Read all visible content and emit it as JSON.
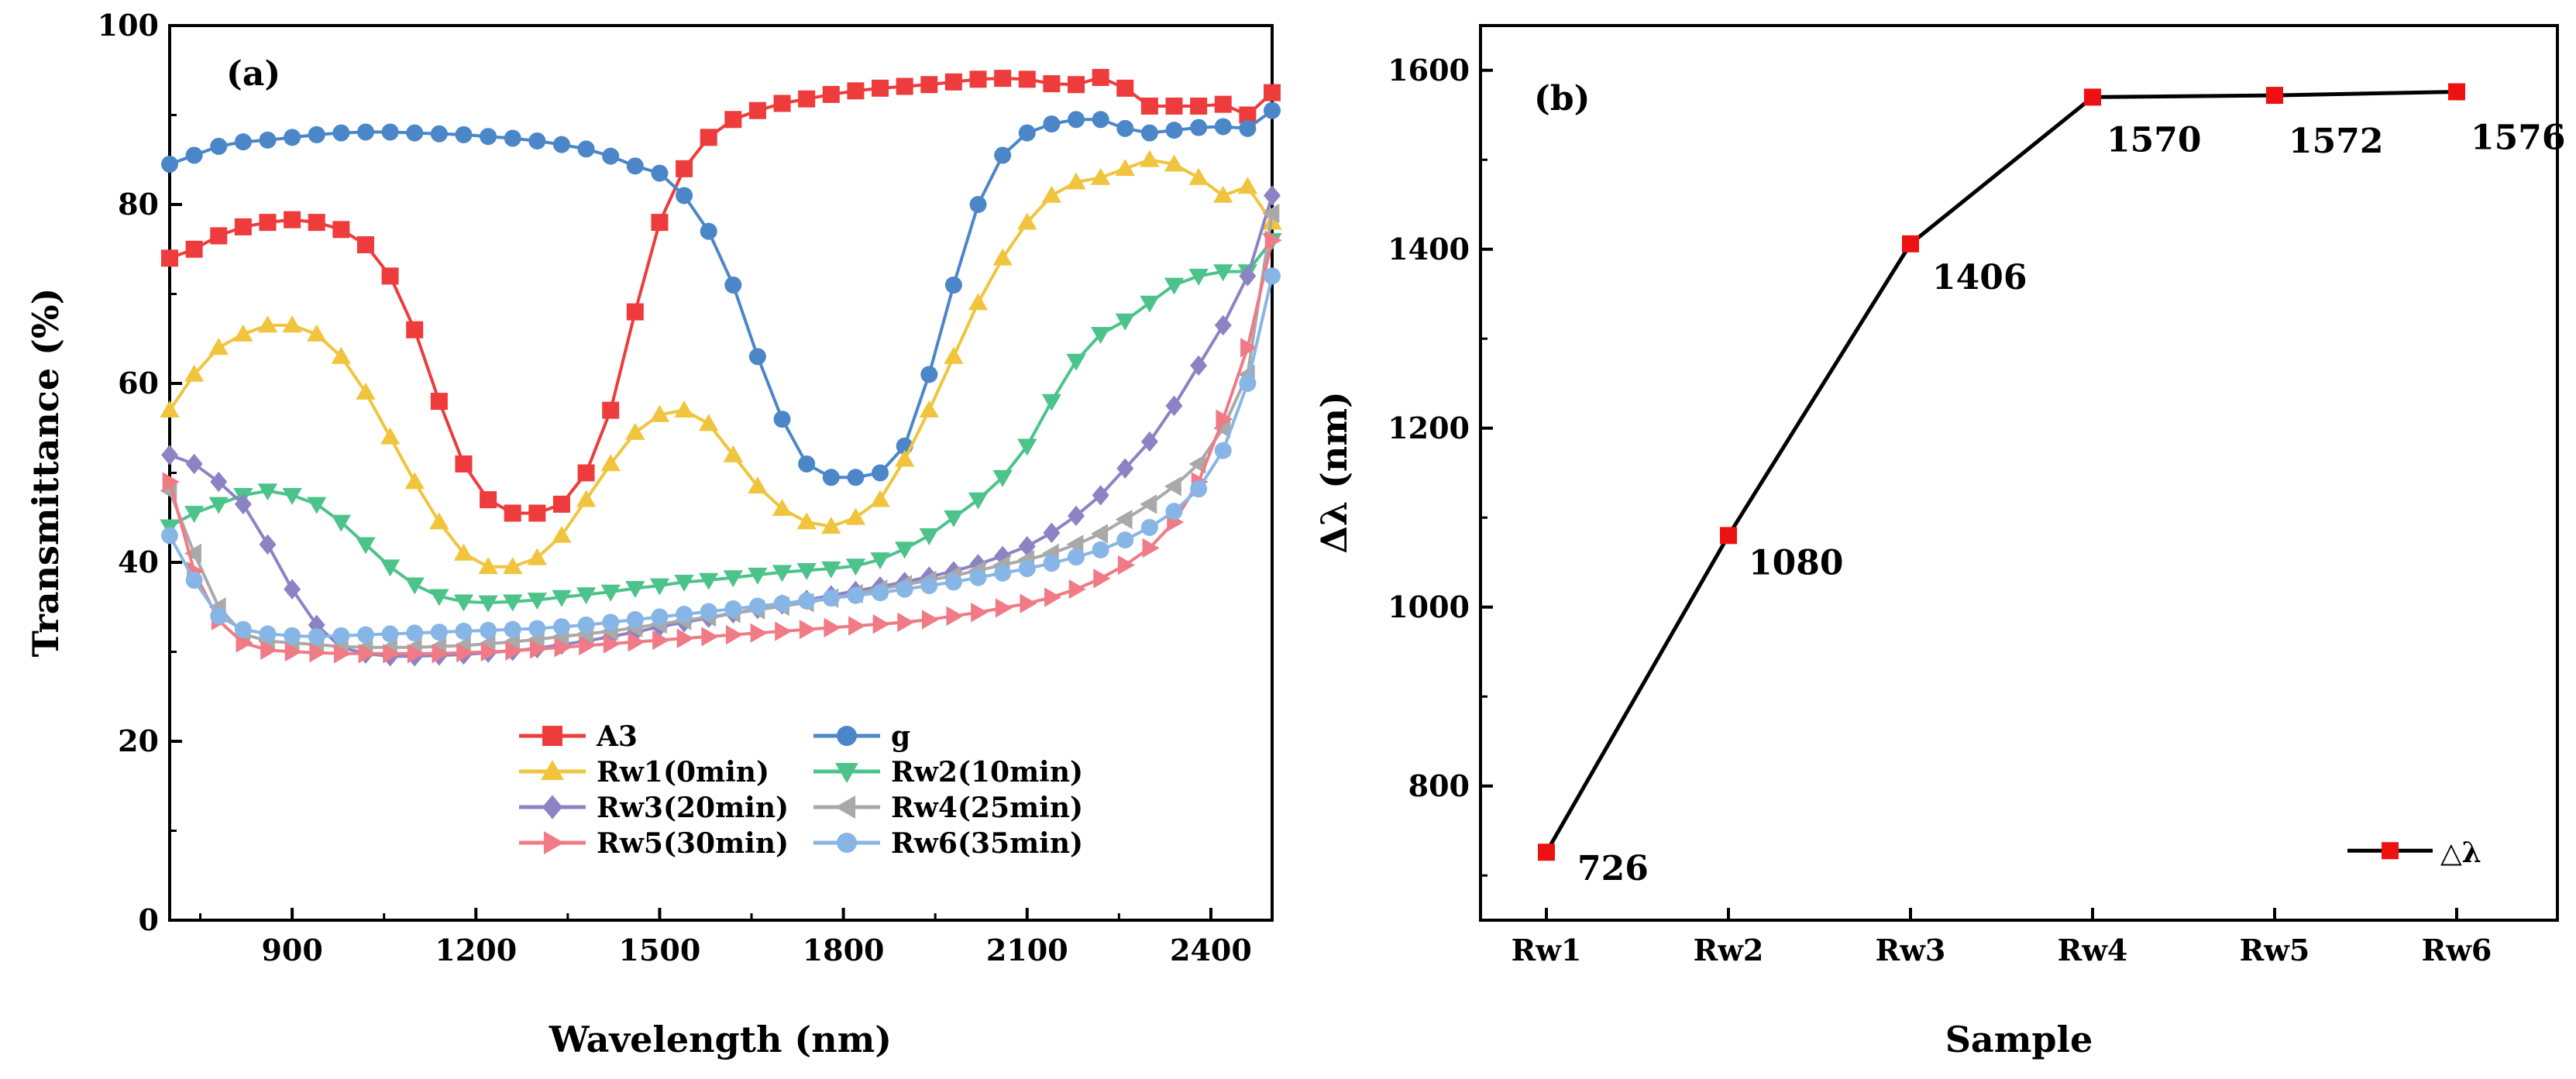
{
  "chart_data": [
    {
      "type": "line",
      "panel_label": "(a)",
      "xlabel": "Wavelength (nm)",
      "ylabel": "Transmittance (%)",
      "xlim": [
        700,
        2500
      ],
      "ylim": [
        0,
        100
      ],
      "x_ticks": [
        900,
        1200,
        1500,
        1800,
        2100,
        2400
      ],
      "y_ticks": [
        0,
        20,
        40,
        60,
        80,
        100
      ],
      "legend_position": "bottom-center",
      "legend_columns": 2,
      "x": [
        700,
        740,
        780,
        820,
        860,
        900,
        940,
        980,
        1020,
        1060,
        1100,
        1140,
        1180,
        1220,
        1260,
        1300,
        1340,
        1380,
        1420,
        1460,
        1500,
        1540,
        1580,
        1620,
        1660,
        1700,
        1740,
        1780,
        1820,
        1860,
        1900,
        1940,
        1980,
        2020,
        2060,
        2100,
        2140,
        2180,
        2220,
        2260,
        2300,
        2340,
        2380,
        2420,
        2460,
        2500
      ],
      "series": [
        {
          "name": "A3",
          "color": "#ee3b3b",
          "marker": "square",
          "values": [
            74,
            75,
            76.5,
            77.5,
            78,
            78.3,
            78,
            77.2,
            75.5,
            72,
            66,
            58,
            51,
            47,
            45.5,
            45.5,
            46.5,
            50,
            57,
            68,
            78,
            84,
            87.5,
            89.5,
            90.5,
            91.3,
            91.8,
            92.3,
            92.7,
            93,
            93.2,
            93.4,
            93.7,
            94,
            94.1,
            94,
            93.5,
            93.4,
            94.2,
            93,
            91,
            91,
            91,
            91.2,
            90,
            92.5
          ]
        },
        {
          "name": "g",
          "color": "#4a86c8",
          "marker": "circle",
          "values": [
            84.5,
            85.5,
            86.5,
            87,
            87.2,
            87.5,
            87.8,
            88,
            88.1,
            88.1,
            88,
            87.9,
            87.8,
            87.6,
            87.4,
            87.1,
            86.7,
            86.2,
            85.4,
            84.3,
            83.5,
            81,
            77,
            71,
            63,
            56,
            51,
            49.5,
            49.5,
            50,
            53,
            61,
            71,
            80,
            85.5,
            88,
            89,
            89.5,
            89.5,
            88.5,
            88,
            88.3,
            88.6,
            88.7,
            88.5,
            90.5
          ]
        },
        {
          "name": "Rw1(0min)",
          "color": "#f0c43c",
          "marker": "triangle-up",
          "values": [
            57,
            61,
            64,
            65.5,
            66.5,
            66.5,
            65.5,
            63,
            59,
            54,
            49,
            44.5,
            41,
            39.5,
            39.5,
            40.5,
            43,
            47,
            51,
            54.5,
            56.5,
            57,
            55.5,
            52,
            48.5,
            46,
            44.5,
            44,
            45,
            47,
            51.5,
            57,
            63,
            69,
            74,
            78,
            81,
            82.5,
            83,
            84,
            85,
            84.5,
            83,
            81,
            82,
            78
          ]
        },
        {
          "name": "Rw2(10min)",
          "color": "#4cc38a",
          "marker": "triangle-down",
          "values": [
            44,
            45.5,
            46.5,
            47.5,
            48,
            47.5,
            46.5,
            44.5,
            42,
            39.5,
            37.5,
            36.2,
            35.6,
            35.5,
            35.6,
            35.8,
            36.1,
            36.4,
            36.7,
            37.1,
            37.4,
            37.8,
            38,
            38.3,
            38.6,
            38.9,
            39.1,
            39.3,
            39.6,
            40.3,
            41.5,
            43,
            45,
            47,
            49.5,
            53,
            58,
            62.5,
            65.5,
            67,
            69,
            71,
            72,
            72.5,
            72.5,
            76
          ]
        },
        {
          "name": "Rw3(20min)",
          "color": "#8b83c4",
          "marker": "diamond",
          "values": [
            52,
            51,
            49,
            46.5,
            42,
            37,
            33,
            30.5,
            29.8,
            29.5,
            29.5,
            29.6,
            29.7,
            29.9,
            30.1,
            30.4,
            30.8,
            31.2,
            31.7,
            32.2,
            32.8,
            33.3,
            33.8,
            34.3,
            34.8,
            35.3,
            35.8,
            36.3,
            36.8,
            37.3,
            37.8,
            38.4,
            39,
            39.8,
            40.7,
            41.8,
            43.3,
            45.2,
            47.5,
            50.5,
            53.5,
            57.5,
            62,
            66.5,
            72,
            81
          ]
        },
        {
          "name": "Rw4(25min)",
          "color": "#a9a9a9",
          "marker": "triangle-left",
          "values": [
            48,
            41,
            35,
            32,
            31.2,
            31,
            30.8,
            30.6,
            30.5,
            30.5,
            30.5,
            30.6,
            30.7,
            30.9,
            31.1,
            31.4,
            31.7,
            32,
            32.3,
            32.7,
            33.1,
            33.5,
            33.9,
            34.3,
            34.7,
            35.1,
            35.5,
            36,
            36.5,
            37,
            37.5,
            38,
            38.5,
            39.1,
            39.7,
            40.3,
            41,
            42,
            43.2,
            44.8,
            46.5,
            48.5,
            51,
            55,
            61,
            79
          ]
        },
        {
          "name": "Rw5(30min)",
          "color": "#f07a86",
          "marker": "triangle-right",
          "values": [
            49,
            39,
            33.5,
            31,
            30.2,
            30,
            29.9,
            29.8,
            29.8,
            29.8,
            29.8,
            29.8,
            29.9,
            30,
            30.1,
            30.3,
            30.5,
            30.7,
            30.9,
            31.1,
            31.3,
            31.5,
            31.7,
            31.9,
            32.1,
            32.3,
            32.5,
            32.7,
            32.9,
            33.1,
            33.3,
            33.6,
            34,
            34.4,
            34.9,
            35.4,
            36.1,
            37,
            38.2,
            39.7,
            41.6,
            44.5,
            49,
            56,
            64,
            76
          ]
        },
        {
          "name": "Rw6(35min)",
          "color": "#87b6e6",
          "marker": "circle",
          "values": [
            43,
            38,
            34,
            32.5,
            32,
            31.8,
            31.7,
            31.8,
            31.9,
            32,
            32.1,
            32.2,
            32.3,
            32.4,
            32.5,
            32.6,
            32.8,
            33,
            33.3,
            33.6,
            33.9,
            34.2,
            34.5,
            34.8,
            35.1,
            35.4,
            35.7,
            36,
            36.3,
            36.6,
            37,
            37.4,
            37.8,
            38.3,
            38.8,
            39.3,
            39.9,
            40.6,
            41.4,
            42.5,
            43.9,
            45.7,
            48.2,
            52.5,
            60,
            72
          ]
        }
      ]
    },
    {
      "type": "line",
      "panel_label": "(b)",
      "xlabel": "Sample",
      "ylabel": "Δλ (nm)",
      "categories": [
        "Rw1",
        "Rw2",
        "Rw3",
        "Rw4",
        "Rw5",
        "Rw6"
      ],
      "ylim": [
        650,
        1650
      ],
      "y_ticks": [
        800,
        1000,
        1200,
        1400,
        1600
      ],
      "legend_position": "bottom-right",
      "legend_entry": "△λ",
      "series": [
        {
          "name": "△λ",
          "line_color": "#000000",
          "marker_color": "#ee1111",
          "marker": "square",
          "values": [
            726,
            1080,
            1406,
            1570,
            1572,
            1576
          ],
          "labels": [
            "726",
            "1080",
            "1406",
            "1570",
            "1572",
            "1576"
          ]
        }
      ]
    }
  ]
}
